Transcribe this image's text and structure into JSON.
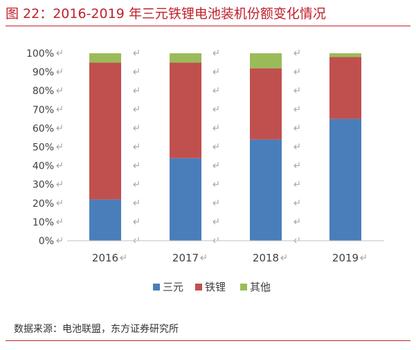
{
  "header": {
    "title": "图 22：2016-2019 年三元铁锂电池装机份额变化情况"
  },
  "footer": {
    "source": "数据来源：电池联盟，东方证券研究所"
  },
  "colors": {
    "title": "#c0202a",
    "ternary": "#4a7ebb",
    "lfp": "#c0504d",
    "other": "#9bbb59",
    "return_mark": "#9a9a9a"
  },
  "chart_data": {
    "type": "bar",
    "stacked": true,
    "categories": [
      "2016",
      "2017",
      "2018",
      "2019"
    ],
    "series": [
      {
        "name": "三元",
        "color": "#4a7ebb",
        "values": [
          22,
          44,
          54,
          65
        ]
      },
      {
        "name": "铁锂",
        "color": "#c0504d",
        "values": [
          73,
          51,
          38,
          33
        ]
      },
      {
        "name": "其他",
        "color": "#9bbb59",
        "values": [
          5,
          5,
          8,
          2
        ]
      }
    ],
    "ylim": [
      0,
      100
    ],
    "yticks": [
      "0%",
      "10%",
      "20%",
      "30%",
      "40%",
      "50%",
      "60%",
      "70%",
      "80%",
      "90%",
      "100%"
    ],
    "ytick_values": [
      0,
      10,
      20,
      30,
      40,
      50,
      60,
      70,
      80,
      90,
      100
    ],
    "legend_position": "bottom",
    "grid": false
  }
}
